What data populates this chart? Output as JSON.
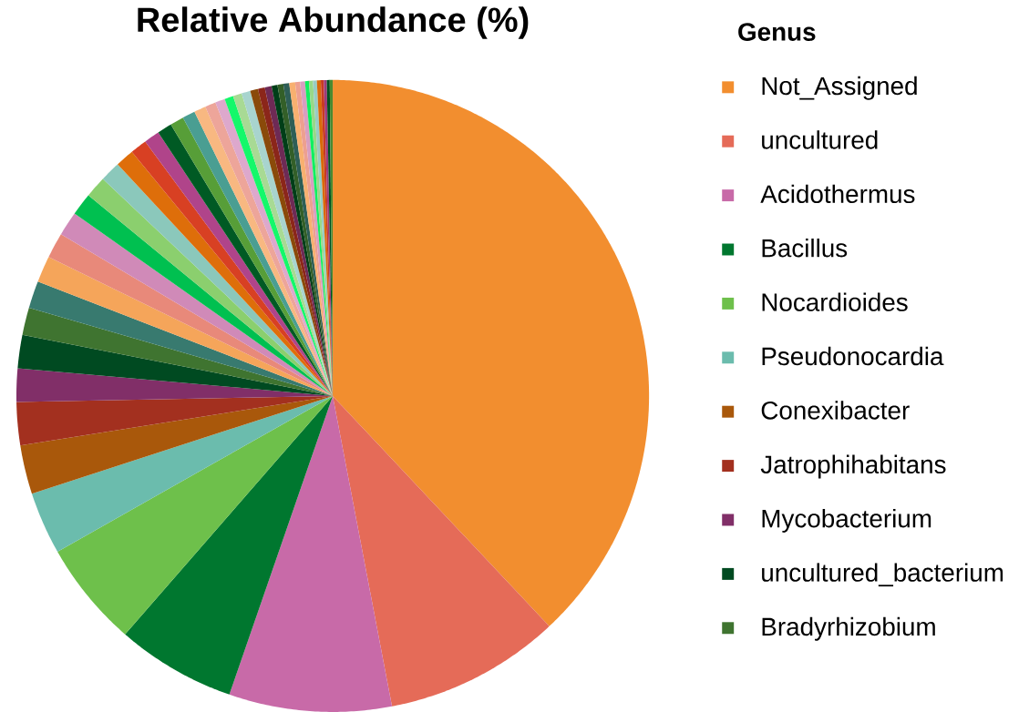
{
  "chart_data": {
    "type": "pie",
    "title": "Relative Abundance (%)",
    "legend_title": "Genus",
    "legend": "right",
    "categories": [
      "Not_Assigned",
      "uncultured",
      "Acidothermus",
      "Bacillus",
      "Nocardioides",
      "Pseudonocardia",
      "Conexibacter",
      "Jatrophihabitans",
      "Mycobacterium",
      "uncultured_bacterium",
      "Bradyrhizobium",
      null,
      null,
      null,
      null,
      null,
      null,
      null,
      null,
      null,
      null,
      null,
      null,
      null,
      null,
      null,
      null,
      null,
      null,
      null,
      null,
      null,
      null,
      null,
      null,
      null,
      null,
      null,
      null,
      null,
      null,
      null,
      null,
      null,
      null,
      null,
      null
    ],
    "values": [
      38.0,
      9.0,
      8.3,
      6.1,
      5.4,
      3.2,
      2.5,
      2.2,
      1.7,
      1.7,
      1.4,
      1.4,
      1.35,
      1.3,
      1.25,
      1.15,
      1.1,
      1.05,
      0.95,
      0.85,
      0.8,
      0.75,
      0.7,
      0.65,
      0.6,
      0.55,
      0.5,
      0.45,
      0.45,
      0.45,
      0.4,
      0.35,
      0.35,
      0.3,
      0.3,
      0.3,
      0.3,
      0.25,
      0.25,
      0.2,
      0.2,
      0.2,
      0.2,
      0.15,
      0.15,
      0.15,
      0.15
    ],
    "colors": [
      "#f28e2f",
      "#e56b58",
      "#c86aa8",
      "#00772f",
      "#6ec04b",
      "#6bbcad",
      "#a9580b",
      "#a3301f",
      "#812f68",
      "#004a21",
      "#3f7430",
      "#387a6f",
      "#f5a55a",
      "#e8897a",
      "#d08ab8",
      "#00c050",
      "#8bcf6e",
      "#8bc8bb",
      "#de6e0a",
      "#d84023",
      "#b0448a",
      "#005a24",
      "#579e38",
      "#4a9e92",
      "#f8b881",
      "#eda59a",
      "#dda8cc",
      "#14f86a",
      "#a8da94",
      "#a8d4ce",
      "#8a4a0a",
      "#8b261a",
      "#6e2a55",
      "#003e18",
      "#335f28",
      "#2e5e56",
      "#f8b070",
      "#eda090",
      "#d89ec0",
      "#10f060",
      "#98d888",
      "#98ccc4",
      "#d86a0a",
      "#c83a23",
      "#9e3a7a",
      "#005020",
      "#4a8a30"
    ]
  }
}
